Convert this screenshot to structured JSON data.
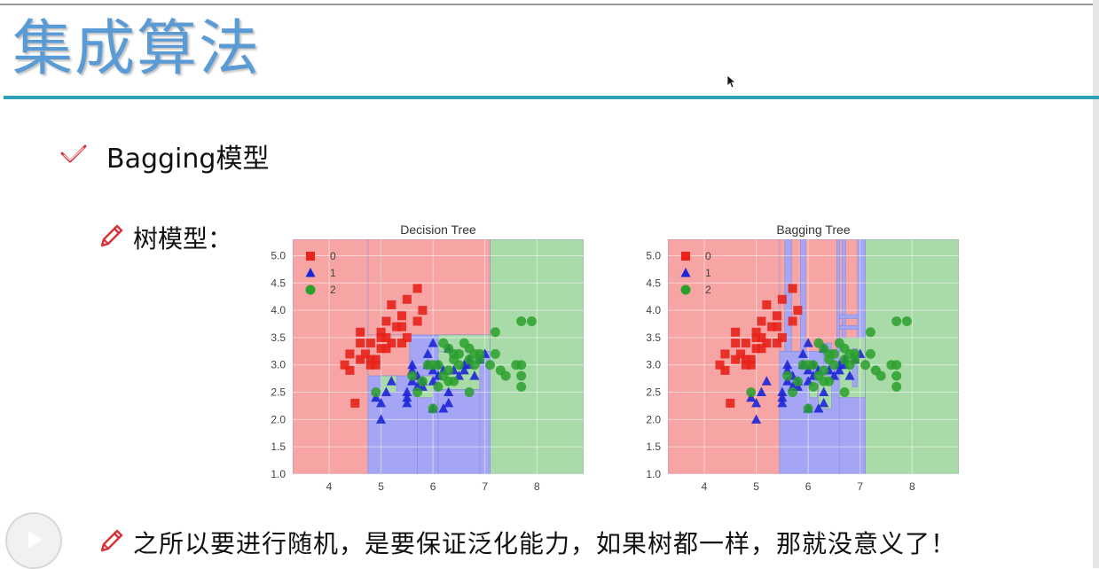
{
  "slide": {
    "title": "集成算法",
    "bullet1": "Bagging模型",
    "bullet2": "树模型：",
    "bullet3": "之所以要进行随机，是要保证泛化能力，如果树都一样，那就没意义了！"
  },
  "icons": {
    "bullet1": "check-mark-icon",
    "bullet2": "pencil-icon",
    "bullet3": "pencil-icon",
    "player": "play-icon",
    "cursor": "mouse-pointer-icon"
  },
  "colors": {
    "title": "#5b9bd5",
    "accent_bar": "#2aa1b5",
    "class0": "#e8231b",
    "class1": "#1c25d6",
    "class2": "#2ca02c",
    "region0": "#f6a4a4",
    "region1": "#a4a6f5",
    "region2": "#a9dba9"
  },
  "chart_data": [
    {
      "type": "scatter",
      "title": "Decision Tree",
      "xlabel": "",
      "ylabel": "",
      "xlim": [
        3.3,
        8.9
      ],
      "ylim": [
        1.0,
        5.3
      ],
      "x_ticks": [
        "4",
        "5",
        "6",
        "7",
        "8"
      ],
      "y_ticks": [
        "1.0",
        "1.5",
        "2.0",
        "2.5",
        "3.0",
        "3.5",
        "4.0",
        "4.5",
        "5.0"
      ],
      "legend": [
        "0",
        "1",
        "2"
      ],
      "legend_position": "top-left",
      "grid": true,
      "series": [
        {
          "name": "0",
          "marker": "square",
          "points": [
            [
              4.3,
              3.0
            ],
            [
              4.4,
              2.9
            ],
            [
              4.4,
              3.2
            ],
            [
              4.5,
              2.3
            ],
            [
              4.6,
              3.1
            ],
            [
              4.6,
              3.4
            ],
            [
              4.6,
              3.6
            ],
            [
              4.7,
              3.2
            ],
            [
              4.8,
              3.0
            ],
            [
              4.8,
              3.4
            ],
            [
              4.9,
              3.1
            ],
            [
              4.9,
              3.0
            ],
            [
              5.0,
              3.3
            ],
            [
              5.0,
              3.5
            ],
            [
              5.0,
              3.6
            ],
            [
              5.1,
              3.8
            ],
            [
              5.1,
              3.5
            ],
            [
              5.2,
              3.4
            ],
            [
              5.2,
              4.1
            ],
            [
              5.3,
              3.7
            ],
            [
              5.4,
              3.9
            ],
            [
              5.4,
              3.4
            ],
            [
              5.5,
              4.2
            ],
            [
              5.5,
              3.5
            ],
            [
              5.7,
              4.4
            ],
            [
              5.7,
              3.8
            ],
            [
              5.8,
              4.0
            ],
            [
              5.4,
              3.7
            ],
            [
              5.1,
              3.3
            ],
            [
              4.8,
              3.1
            ]
          ]
        },
        {
          "name": "1",
          "marker": "triangle",
          "points": [
            [
              4.9,
              2.4
            ],
            [
              5.0,
              2.0
            ],
            [
              5.0,
              2.3
            ],
            [
              5.1,
              2.5
            ],
            [
              5.2,
              2.7
            ],
            [
              5.5,
              2.3
            ],
            [
              5.5,
              2.4
            ],
            [
              5.5,
              2.5
            ],
            [
              5.6,
              2.9
            ],
            [
              5.6,
              3.0
            ],
            [
              5.6,
              2.7
            ],
            [
              5.7,
              2.8
            ],
            [
              5.7,
              2.6
            ],
            [
              5.8,
              2.7
            ],
            [
              5.8,
              2.6
            ],
            [
              5.9,
              3.0
            ],
            [
              5.9,
              3.2
            ],
            [
              6.0,
              2.2
            ],
            [
              6.0,
              2.7
            ],
            [
              6.0,
              2.9
            ],
            [
              6.0,
              3.4
            ],
            [
              6.1,
              2.8
            ],
            [
              6.1,
              3.0
            ],
            [
              6.2,
              2.2
            ],
            [
              6.2,
              2.9
            ],
            [
              6.3,
              2.3
            ],
            [
              6.3,
              2.5
            ],
            [
              6.3,
              3.3
            ],
            [
              6.4,
              2.9
            ],
            [
              6.5,
              2.8
            ],
            [
              6.6,
              2.9
            ],
            [
              6.6,
              3.0
            ],
            [
              6.7,
              3.1
            ],
            [
              6.8,
              2.8
            ],
            [
              6.9,
              3.1
            ],
            [
              7.0,
              3.2
            ],
            [
              6.7,
              3.0
            ]
          ]
        },
        {
          "name": "2",
          "marker": "circle",
          "points": [
            [
              4.9,
              2.5
            ],
            [
              5.6,
              2.8
            ],
            [
              5.7,
              2.5
            ],
            [
              5.8,
              2.7
            ],
            [
              5.9,
              3.0
            ],
            [
              6.0,
              2.2
            ],
            [
              6.0,
              3.0
            ],
            [
              6.1,
              2.6
            ],
            [
              6.1,
              3.0
            ],
            [
              6.2,
              2.8
            ],
            [
              6.2,
              3.4
            ],
            [
              6.3,
              2.7
            ],
            [
              6.3,
              2.9
            ],
            [
              6.3,
              3.3
            ],
            [
              6.4,
              2.7
            ],
            [
              6.4,
              3.1
            ],
            [
              6.4,
              3.2
            ],
            [
              6.5,
              3.0
            ],
            [
              6.5,
              3.2
            ],
            [
              6.7,
              2.5
            ],
            [
              6.7,
              3.1
            ],
            [
              6.7,
              3.3
            ],
            [
              6.8,
              3.0
            ],
            [
              6.8,
              3.2
            ],
            [
              6.9,
              3.1
            ],
            [
              7.1,
              3.0
            ],
            [
              7.2,
              3.2
            ],
            [
              7.2,
              3.6
            ],
            [
              7.3,
              2.9
            ],
            [
              7.4,
              2.8
            ],
            [
              7.6,
              3.0
            ],
            [
              7.7,
              2.6
            ],
            [
              7.7,
              2.8
            ],
            [
              7.7,
              3.0
            ],
            [
              7.7,
              3.8
            ],
            [
              7.9,
              3.8
            ],
            [
              6.9,
              3.2
            ],
            [
              6.6,
              3.4
            ]
          ]
        }
      ]
    },
    {
      "type": "scatter",
      "title": "Bagging Tree",
      "xlabel": "",
      "ylabel": "",
      "xlim": [
        3.3,
        8.9
      ],
      "ylim": [
        1.0,
        5.3
      ],
      "x_ticks": [
        "4",
        "5",
        "6",
        "7",
        "8"
      ],
      "y_ticks": [
        "1.0",
        "1.5",
        "2.0",
        "2.5",
        "3.0",
        "3.5",
        "4.0",
        "4.5",
        "5.0"
      ],
      "legend": [
        "0",
        "1",
        "2"
      ],
      "legend_position": "top-left",
      "grid": true,
      "same_points_as": "Decision Tree"
    }
  ]
}
